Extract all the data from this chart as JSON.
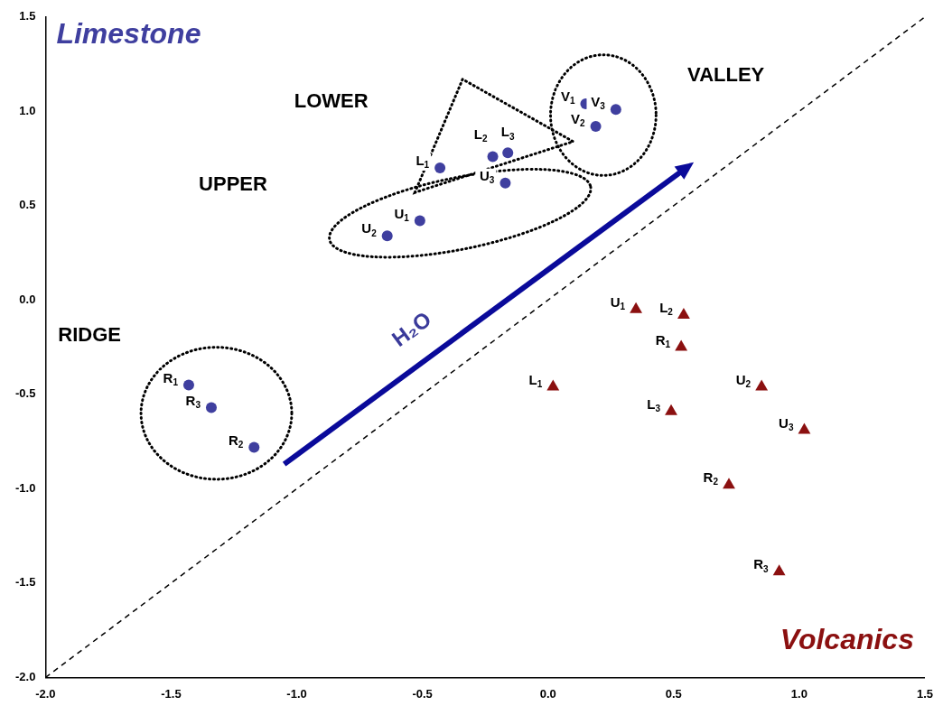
{
  "chart_data": {
    "type": "scatter",
    "xlim": [
      -2,
      1.5
    ],
    "ylim": [
      -2,
      1.5
    ],
    "xticks": [
      {
        "value": -2,
        "label": "-2.0"
      },
      {
        "value": -1.5,
        "label": "-1.5"
      },
      {
        "value": -1,
        "label": "-1.0"
      },
      {
        "value": -0.5,
        "label": "-0.5"
      },
      {
        "value": 0,
        "label": "0.0"
      },
      {
        "value": 0.5,
        "label": "0.5"
      },
      {
        "value": 1,
        "label": "1.0"
      },
      {
        "value": 1.5,
        "label": "1.5"
      }
    ],
    "yticks": [
      {
        "value": -2,
        "label": "-2.0"
      },
      {
        "value": -1.5,
        "label": "-1.5"
      },
      {
        "value": -1,
        "label": "-1.0"
      },
      {
        "value": -0.5,
        "label": "-0.5"
      },
      {
        "value": 0,
        "label": "0.0"
      },
      {
        "value": 0.5,
        "label": "0.5"
      },
      {
        "value": 1,
        "label": "1.0"
      },
      {
        "value": 1.5,
        "label": "1.5"
      }
    ],
    "grid": false,
    "legend": false,
    "series": [
      {
        "name": "Limestone",
        "color": "#3f3f9f",
        "marker": "circle",
        "x": [
          -1.43,
          -1.34,
          -1.17,
          -0.64,
          -0.51,
          -0.17,
          -0.43,
          -0.22,
          -0.16,
          0.15,
          0.19,
          0.27
        ],
        "values": [
          -0.45,
          -0.57,
          -0.78,
          0.34,
          0.42,
          0.62,
          0.7,
          0.76,
          0.78,
          1.04,
          0.92,
          1.01
        ]
      },
      {
        "name": "Volcanics",
        "color": "#8b1010",
        "marker": "triangle",
        "x": [
          0.35,
          0.54,
          0.53,
          0.02,
          0.85,
          0.49,
          1.02,
          0.72,
          0.92
        ],
        "values": [
          -0.05,
          -0.08,
          -0.25,
          -0.46,
          -0.46,
          -0.59,
          -0.69,
          -0.98,
          -1.44
        ]
      },
      {
        "type": "line",
        "color": "#000000",
        "marker": "none",
        "line_style": "dashed",
        "x": [
          -2,
          1.5
        ],
        "values": [
          -2,
          1.5
        ]
      }
    ],
    "annotations": [
      {
        "text": "R$_{1}$",
        "x": -1.43,
        "y": -0.45
      },
      {
        "text": "R$_{3}$",
        "x": -1.34,
        "y": -0.57
      },
      {
        "text": "R$_{2}$",
        "x": -1.17,
        "y": -0.78
      },
      {
        "text": "U$_{2}$",
        "x": -0.64,
        "y": 0.34
      },
      {
        "text": "U$_{1}$",
        "x": -0.51,
        "y": 0.42
      },
      {
        "text": "U$_{3}$",
        "x": -0.17,
        "y": 0.62
      },
      {
        "text": "L$_{1}$",
        "x": -0.43,
        "y": 0.7
      },
      {
        "text": "L$_{2}$",
        "x": -0.22,
        "y": 0.76
      },
      {
        "text": "L$_{3}$",
        "x": -0.16,
        "y": 0.78
      },
      {
        "text": "V$_{1}$",
        "x": 0.15,
        "y": 1.04
      },
      {
        "text": "V$_{2}$",
        "x": 0.19,
        "y": 0.92
      },
      {
        "text": "V$_{3}$",
        "x": 0.27,
        "y": 1.01
      },
      {
        "text": "U$_{1}$",
        "x": 0.35,
        "y": -0.05
      },
      {
        "text": "L$_{2}$",
        "x": 0.54,
        "y": -0.08
      },
      {
        "text": "R$_{1}$",
        "x": 0.53,
        "y": -0.25
      },
      {
        "text": "L$_{1}$",
        "x": 0.02,
        "y": -0.46
      },
      {
        "text": "U$_{2}$",
        "x": 0.85,
        "y": -0.46
      },
      {
        "text": "L$_{3}$",
        "x": 0.49,
        "y": -0.59
      },
      {
        "text": "U$_{3}$",
        "x": 1.02,
        "y": -0.69
      },
      {
        "text": "R$_{2}$",
        "x": 0.72,
        "y": -0.98
      },
      {
        "text": "R$_{3}$",
        "x": 0.92,
        "y": -1.44
      },
      "LOWER",
      "UPPER",
      "VALLEY",
      "RIDGE",
      "H₂O"
    ]
  }
}
